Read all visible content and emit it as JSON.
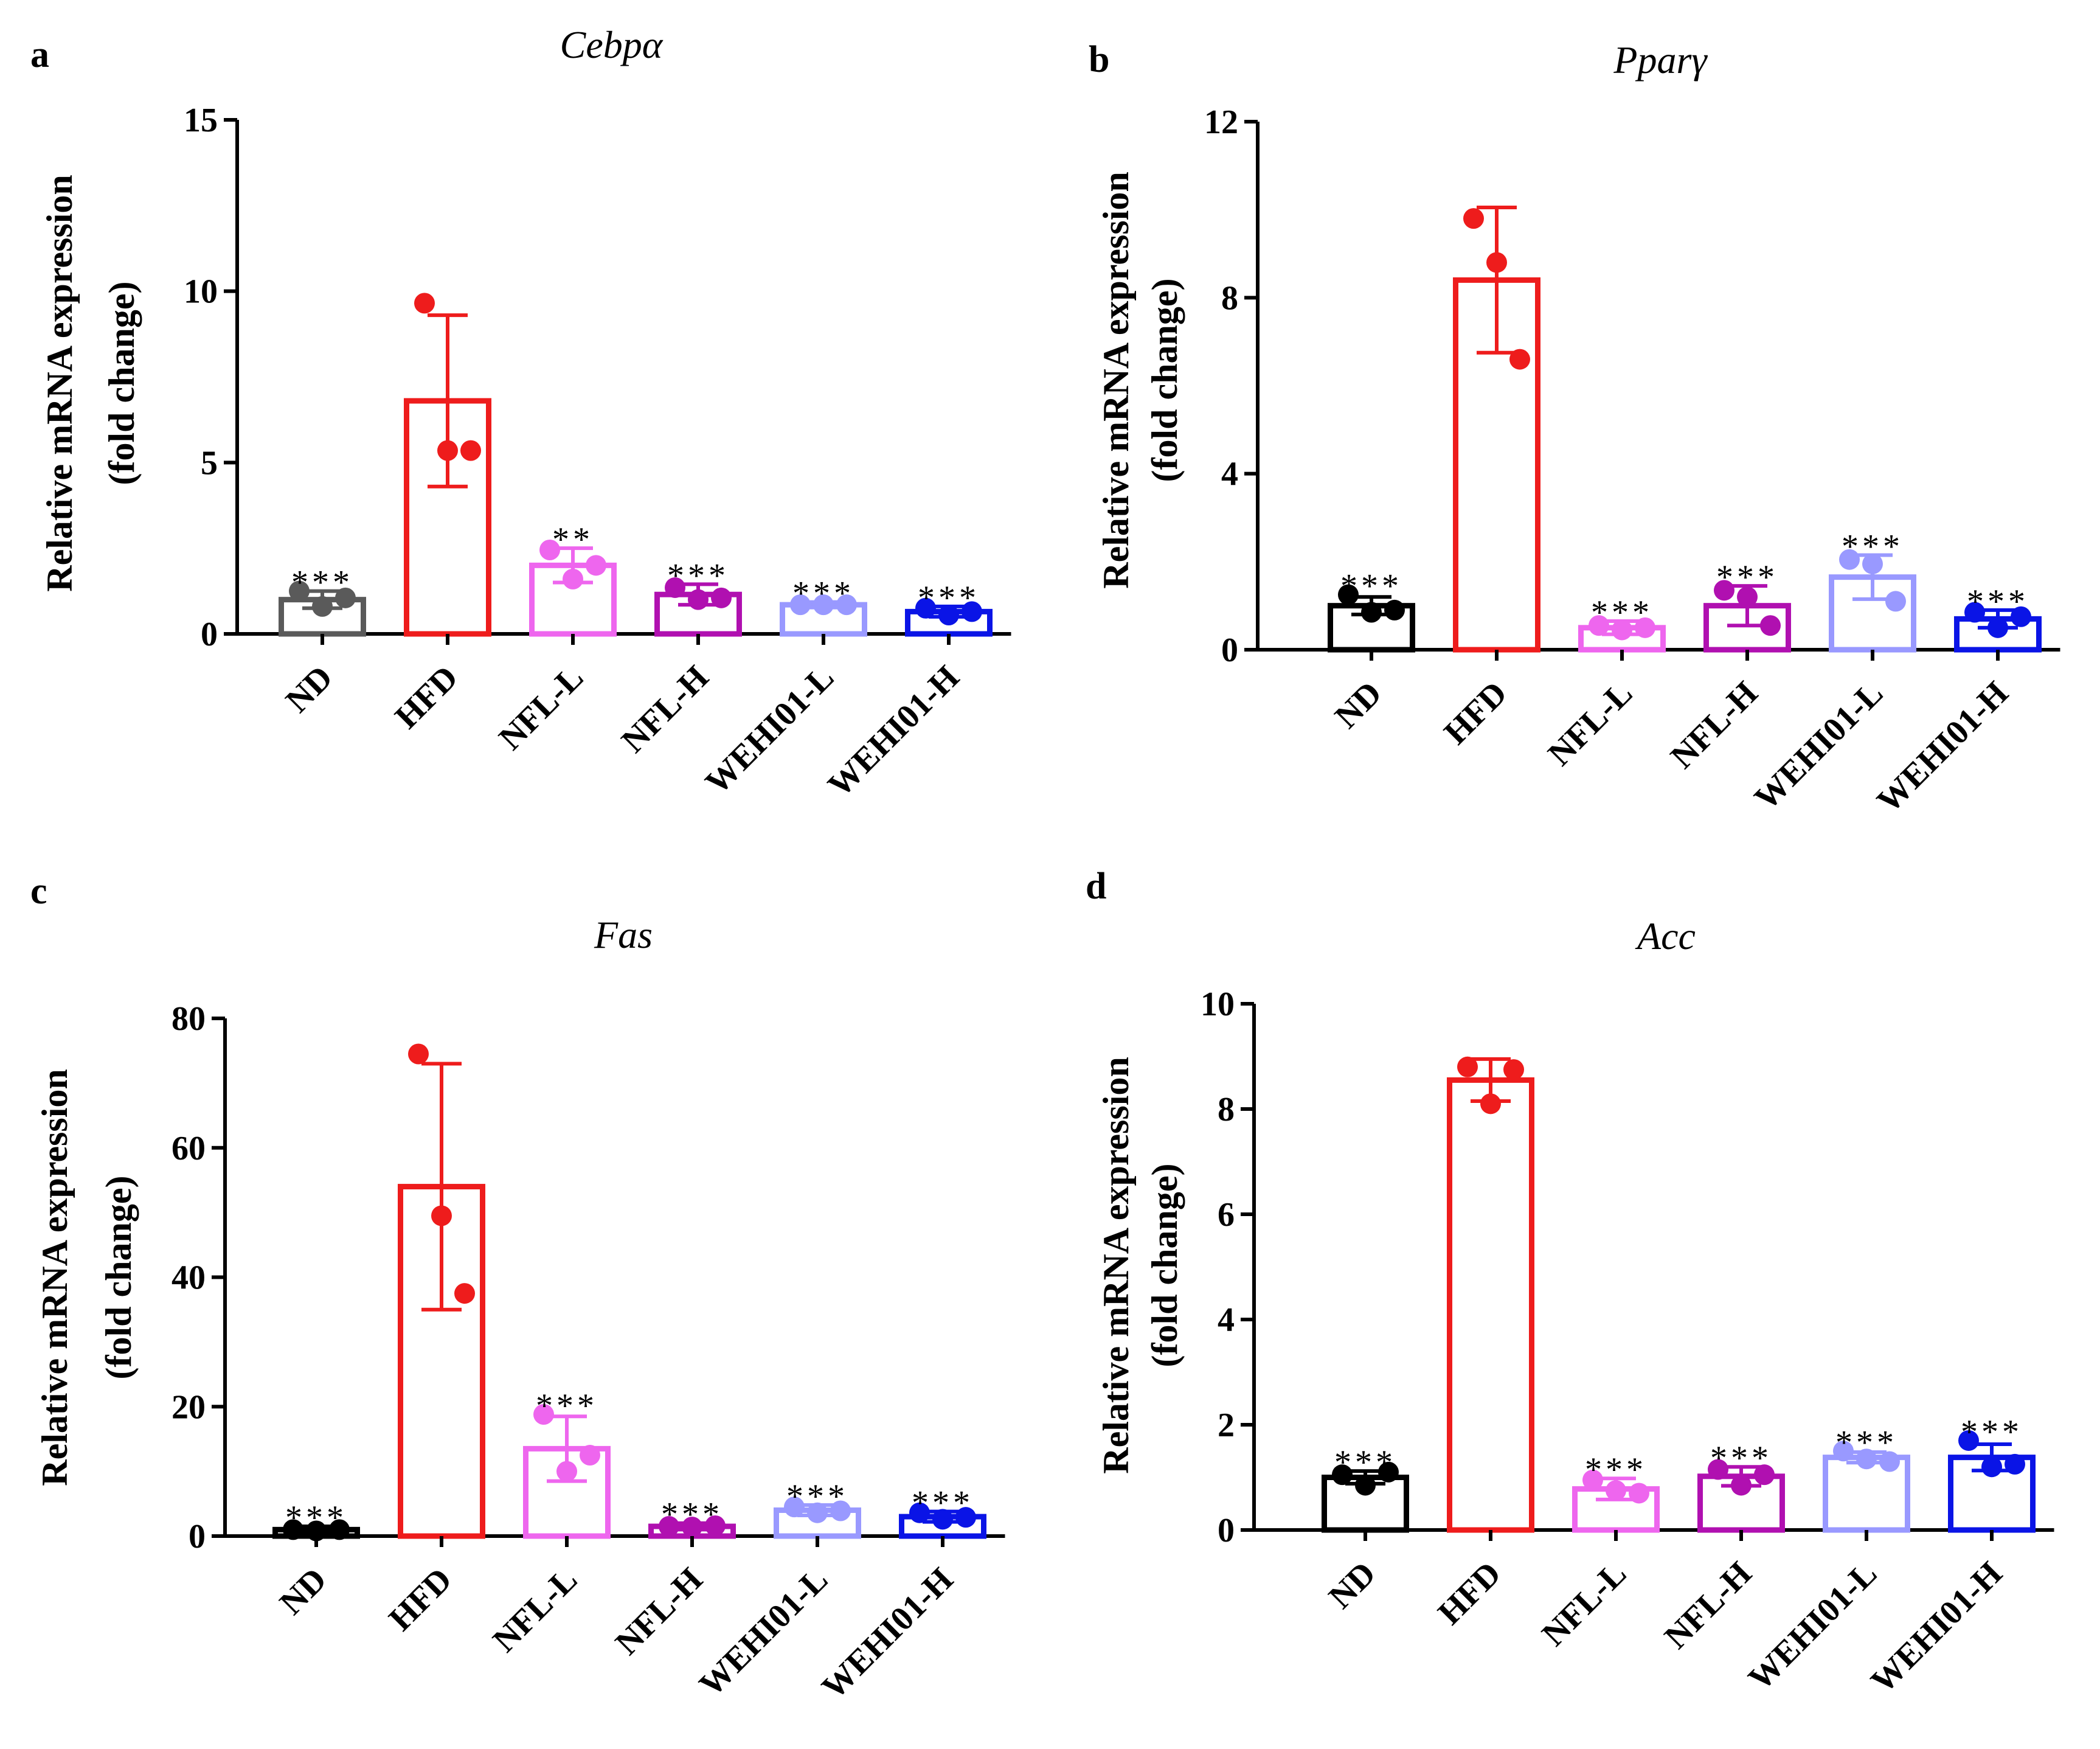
{
  "chart_data": [
    {
      "panel": "a",
      "type": "bar",
      "title": "Cebpα",
      "ylabel_line1": "Relative mRNA expression",
      "ylabel_line2": "(fold change)",
      "xlabel": "",
      "ylim": [
        0,
        15
      ],
      "yticks": [
        0,
        5,
        10,
        15
      ],
      "categories": [
        "ND",
        "HFD",
        "NFL-L",
        "NFL-H",
        "WEHI01-L",
        "WEHI01-H"
      ],
      "colors": [
        "#5a5a5a",
        "#ee1c1c",
        "#ee66ee",
        "#b010b0",
        "#9999ff",
        "#0a14e6"
      ],
      "values": [
        1.0,
        6.8,
        2.0,
        1.15,
        0.85,
        0.65
      ],
      "errors": [
        0.25,
        2.5,
        0.5,
        0.3,
        0.08,
        0.15
      ],
      "points": [
        [
          1.25,
          0.8,
          1.05
        ],
        [
          9.65,
          5.35,
          5.35
        ],
        [
          2.45,
          1.6,
          2.0
        ],
        [
          1.35,
          1.0,
          1.05
        ],
        [
          0.85,
          0.85,
          0.85
        ],
        [
          0.75,
          0.55,
          0.65
        ]
      ],
      "significance": [
        "***",
        "",
        "**",
        "***",
        "***",
        "***"
      ]
    },
    {
      "panel": "b",
      "type": "bar",
      "title": "Pparγ",
      "ylabel_line1": "Relative mRNA expression",
      "ylabel_line2": "(fold change)",
      "xlabel": "",
      "ylim": [
        0,
        12
      ],
      "yticks": [
        0,
        4,
        8,
        12
      ],
      "categories": [
        "ND",
        "HFD",
        "NFL-L",
        "NFL-H",
        "WEHI01-L",
        "WEHI01-H"
      ],
      "colors": [
        "#000000",
        "#ee1c1c",
        "#ee66ee",
        "#b010b0",
        "#9999ff",
        "#0a14e6"
      ],
      "values": [
        1.0,
        8.4,
        0.5,
        1.0,
        1.65,
        0.7
      ],
      "errors": [
        0.2,
        1.65,
        0.15,
        0.45,
        0.5,
        0.2
      ],
      "points": [
        [
          1.25,
          0.85,
          0.9
        ],
        [
          9.8,
          8.8,
          6.6
        ],
        [
          0.55,
          0.45,
          0.5
        ],
        [
          1.35,
          1.2,
          0.55
        ],
        [
          2.05,
          1.95,
          1.1
        ],
        [
          0.85,
          0.5,
          0.75
        ]
      ],
      "significance": [
        "***",
        "",
        "***",
        "***",
        "***",
        "***"
      ]
    },
    {
      "panel": "c",
      "type": "bar",
      "title": "Fas",
      "ylabel_line1": "Relative mRNA expression",
      "ylabel_line2": "(fold change)",
      "xlabel": "",
      "ylim": [
        0,
        80
      ],
      "yticks": [
        0,
        20,
        40,
        60,
        80
      ],
      "categories": [
        "ND",
        "HFD",
        "NFL-L",
        "NFL-H",
        "WEHI01-L",
        "WEHI01-H"
      ],
      "colors": [
        "#000000",
        "#ee1c1c",
        "#ee66ee",
        "#b010b0",
        "#9999ff",
        "#0a14e6"
      ],
      "values": [
        1.0,
        54,
        13.5,
        1.5,
        4.0,
        3.0
      ],
      "errors": [
        0.5,
        19,
        5,
        0.5,
        0.8,
        0.8
      ],
      "points": [
        [
          1.0,
          0.8,
          1.0
        ],
        [
          74.5,
          49.5,
          37.5
        ],
        [
          18.8,
          10.0,
          12.5
        ],
        [
          1.5,
          1.4,
          1.6
        ],
        [
          4.5,
          3.6,
          3.9
        ],
        [
          3.6,
          2.6,
          2.9
        ]
      ],
      "significance": [
        "***",
        "",
        "***",
        "***",
        "***",
        "***"
      ]
    },
    {
      "panel": "d",
      "type": "bar",
      "title": "Acc",
      "ylabel_line1": "Relative mRNA expression",
      "ylabel_line2": "(fold change)",
      "xlabel": "",
      "ylim": [
        0,
        10
      ],
      "yticks": [
        0,
        2,
        4,
        6,
        8,
        10
      ],
      "categories": [
        "ND",
        "HFD",
        "NFL-L",
        "NFL-H",
        "WEHI01-L",
        "WEHI01-H"
      ],
      "colors": [
        "#000000",
        "#ee1c1c",
        "#ee66ee",
        "#b010b0",
        "#9999ff",
        "#0a14e6"
      ],
      "values": [
        1.0,
        8.55,
        0.78,
        1.02,
        1.38,
        1.38
      ],
      "errors": [
        0.12,
        0.4,
        0.2,
        0.18,
        0.1,
        0.25
      ],
      "points": [
        [
          1.05,
          0.85,
          1.1
        ],
        [
          8.8,
          8.1,
          8.75
        ],
        [
          0.95,
          0.75,
          0.7
        ],
        [
          1.15,
          0.85,
          1.05
        ],
        [
          1.5,
          1.35,
          1.3
        ],
        [
          1.7,
          1.2,
          1.25
        ]
      ],
      "significance": [
        "***",
        "",
        "***",
        "***",
        "***",
        "***"
      ]
    }
  ]
}
